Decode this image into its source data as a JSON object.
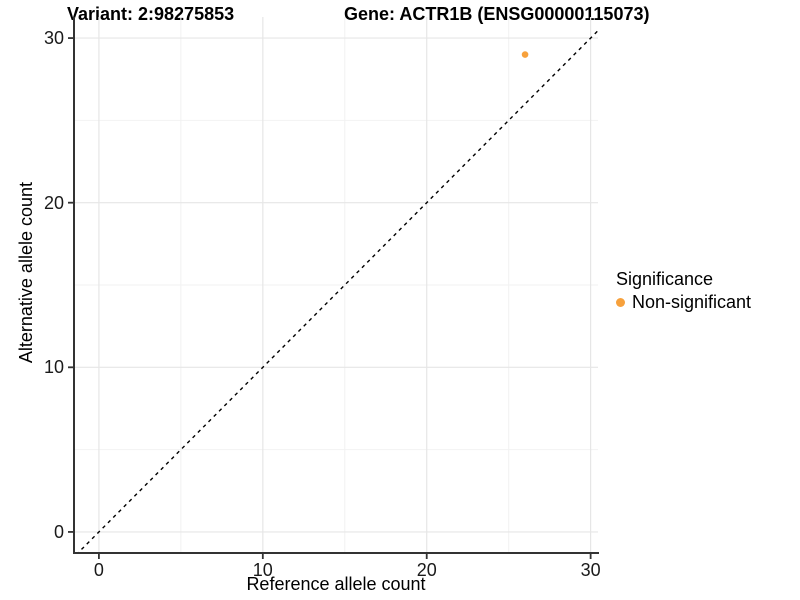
{
  "chart_data": {
    "type": "scatter",
    "title_left": "Variant: 2:98275853",
    "title_right": "Gene: ACTR1B (ENSG00000115073)",
    "xlabel": "Reference allele count",
    "ylabel": "Alternative allele count",
    "xlim": [
      0,
      30
    ],
    "ylim": [
      0,
      30
    ],
    "x_range_display": [
      -1.52,
      30.45
    ],
    "y_range_display": [
      -1.28,
      31.28
    ],
    "xticks": [
      0,
      10,
      20,
      30
    ],
    "yticks": [
      0,
      10,
      20,
      30
    ],
    "minor_ticks": [
      5,
      15,
      25
    ],
    "grid": true,
    "reference_line": {
      "type": "identity",
      "slope": 1,
      "intercept": 0,
      "style": "dashed",
      "color": "#000000"
    },
    "series": [
      {
        "name": "Non-significant",
        "color": "#F7A13C",
        "points": [
          {
            "x": 26,
            "y": 29
          }
        ]
      }
    ],
    "legend": {
      "title": "Significance",
      "position": "right",
      "items": [
        {
          "label": "Non-significant",
          "color": "#F7A13C"
        }
      ]
    },
    "colors": {
      "axis_line": "#333333",
      "grid_major": "#e6e6e6",
      "grid_minor": "#f2f2f2",
      "background": "#ffffff"
    }
  }
}
